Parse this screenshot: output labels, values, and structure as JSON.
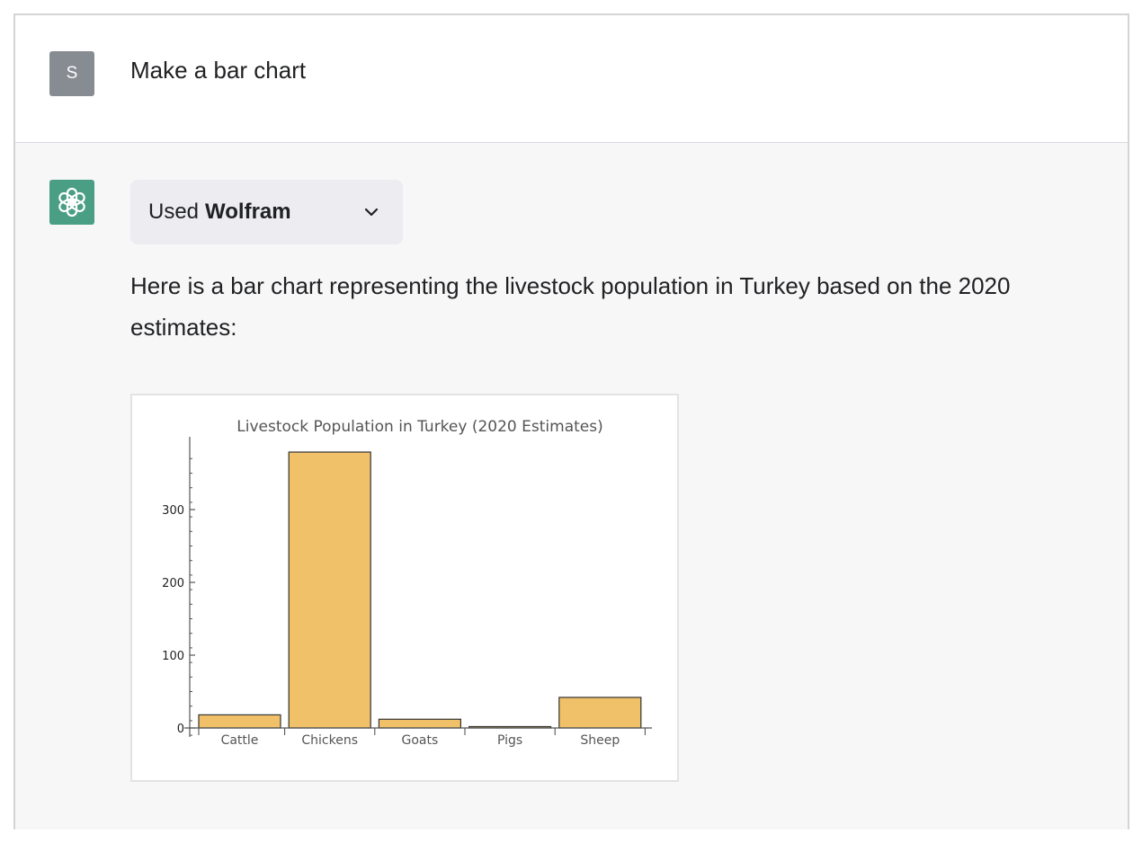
{
  "user_message": {
    "avatar_letter": "S",
    "text": "Make a bar chart"
  },
  "assistant_message": {
    "tool": {
      "used_label": "Used",
      "tool_name": "Wolfram"
    },
    "reply_text": "Here is a bar chart representing the livestock population in Turkey based on the 2020 estimates:"
  },
  "colors": {
    "bar_fill": "#f1c16a",
    "bar_stroke": "#333333",
    "assistant_bg": "#f7f7f8",
    "avatar_user": "#878c93",
    "avatar_bot": "#4a9e84"
  },
  "chart_data": {
    "type": "bar",
    "title": "Livestock Population in Turkey (2020 Estimates)",
    "categories": [
      "Cattle",
      "Chickens",
      "Goats",
      "Pigs",
      "Sheep"
    ],
    "values": [
      18,
      379,
      12,
      1,
      42
    ],
    "yticks": [
      0,
      100,
      200,
      300
    ],
    "ylim": [
      -5,
      400
    ],
    "xlabel": "",
    "ylabel": "",
    "grid": false,
    "legend": "none"
  }
}
